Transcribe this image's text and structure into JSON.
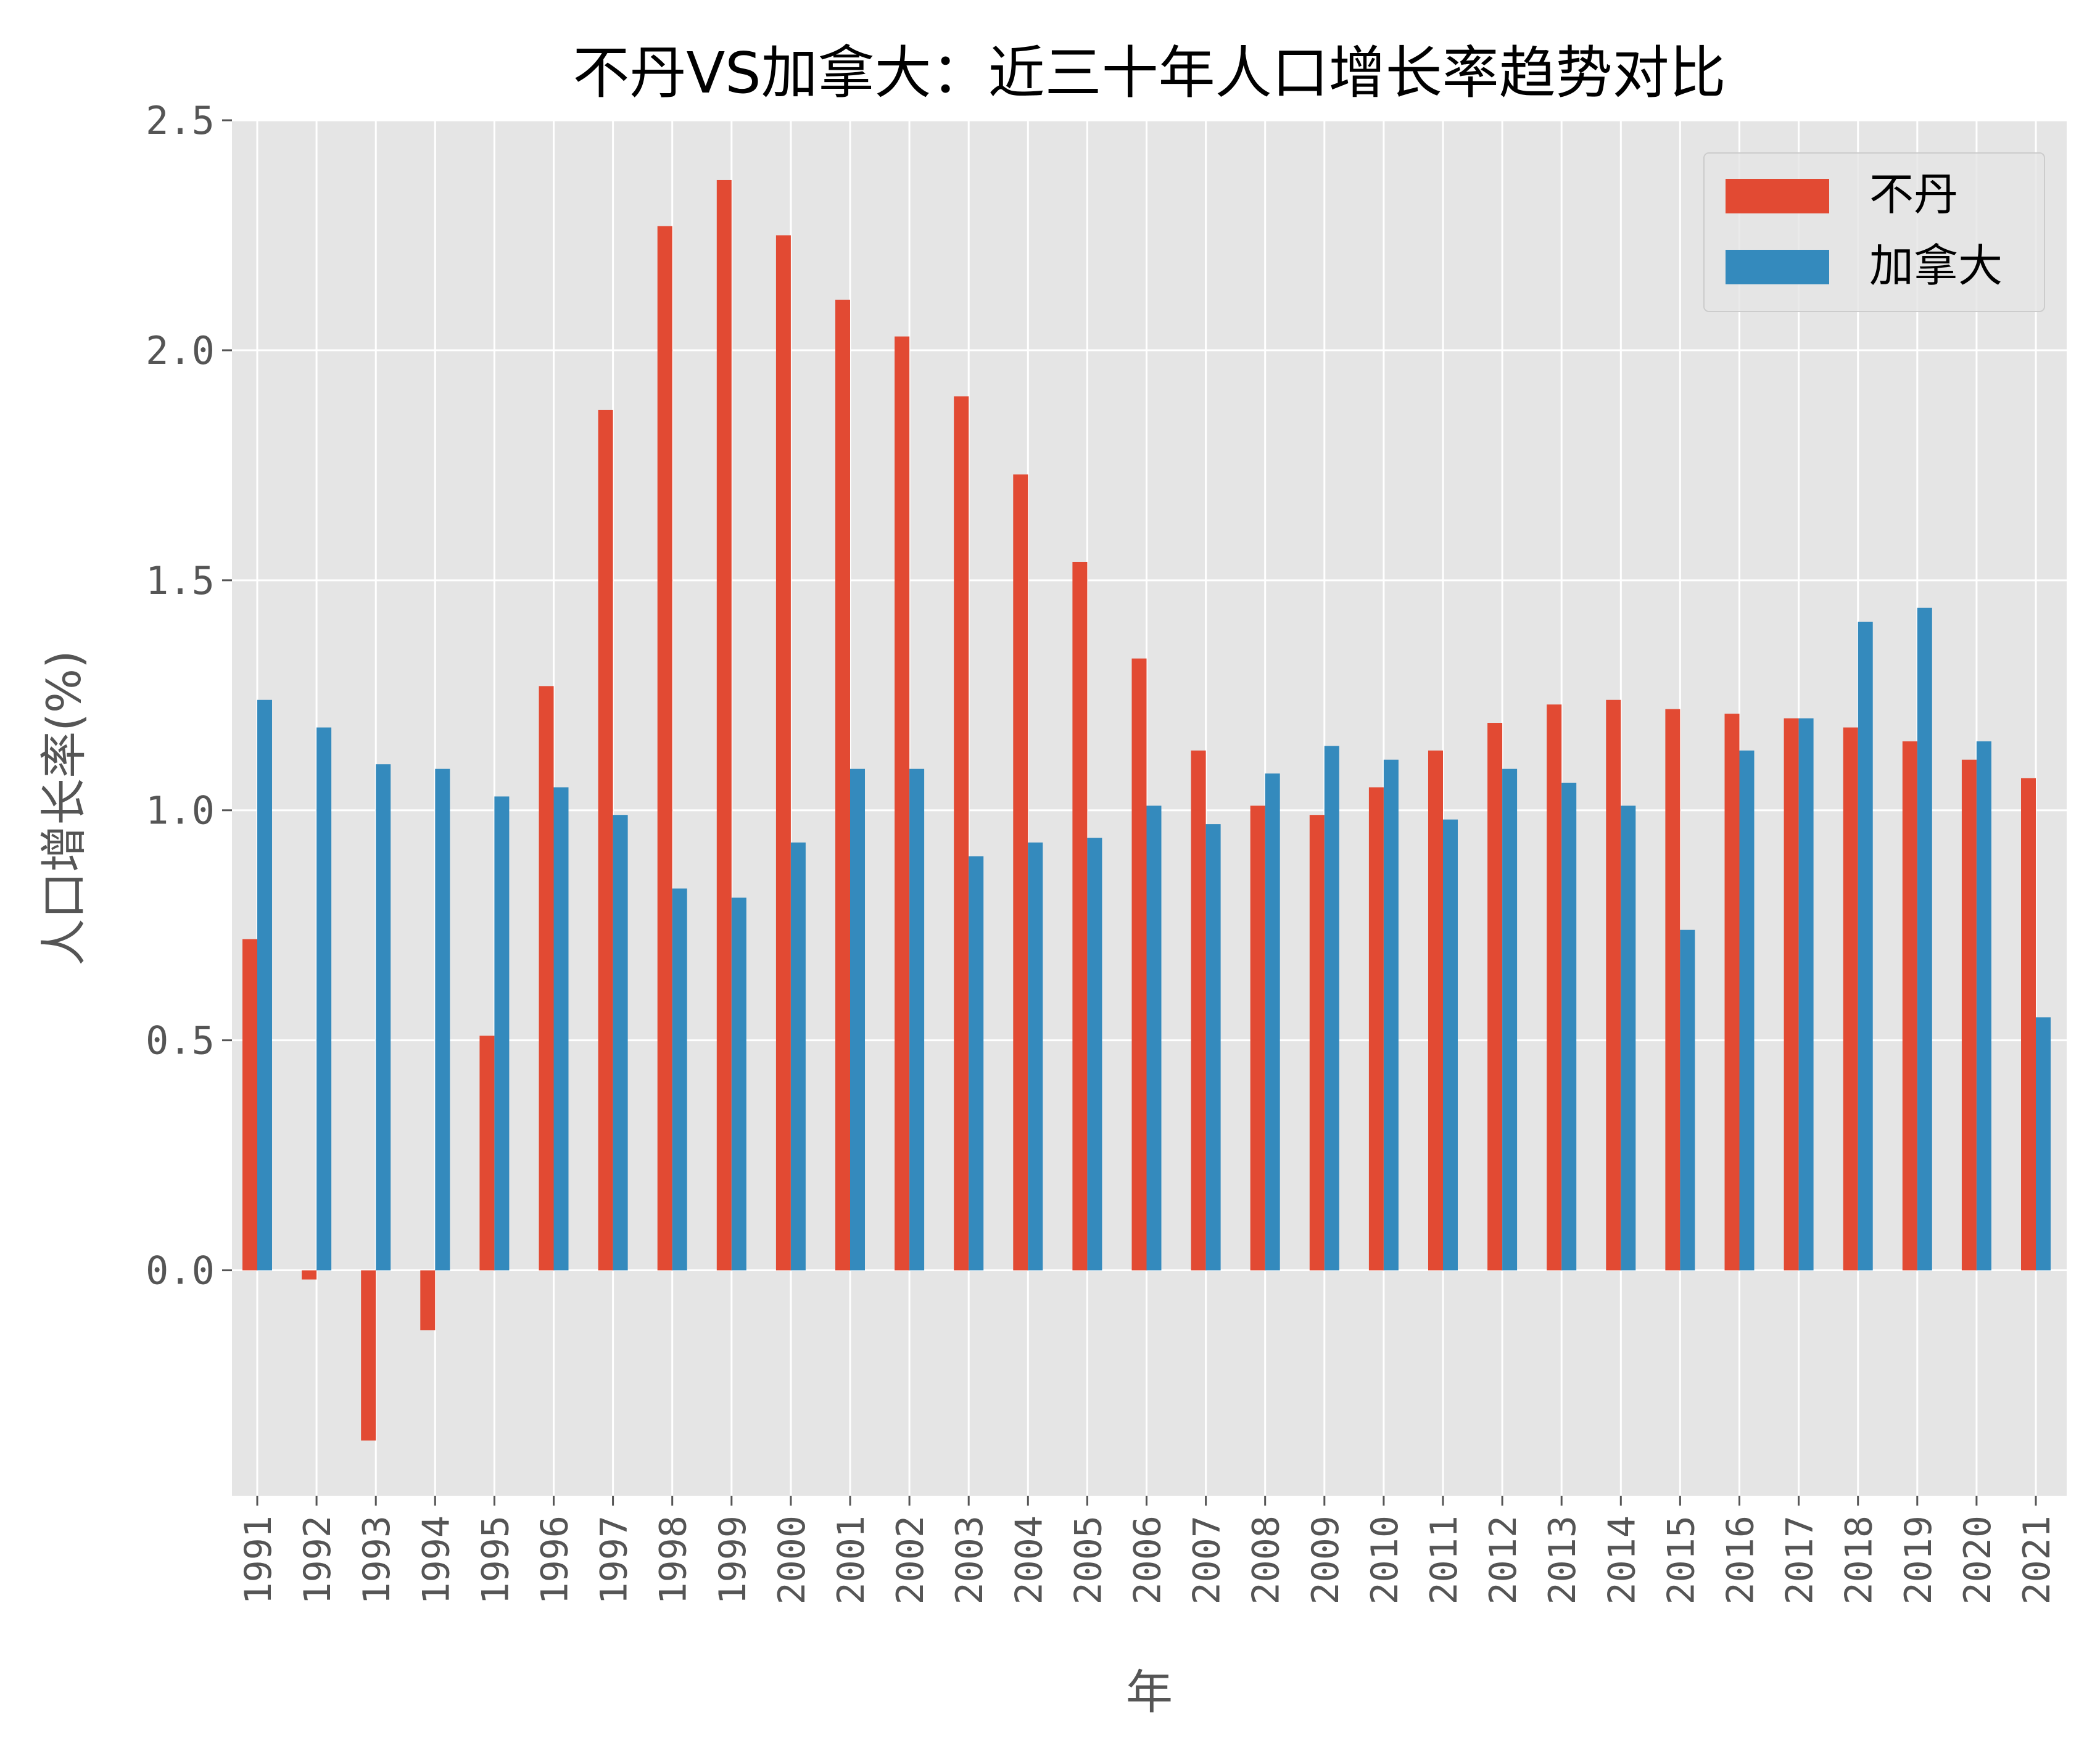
{
  "chart_data": {
    "type": "bar",
    "title": "不丹VS加拿大：近三十年人口增长率趋势对比",
    "xlabel": "年",
    "ylabel": "人口增长率(%)",
    "ylim": [
      -0.49,
      2.5
    ],
    "yticks": [
      "0.0",
      "0.5",
      "1.0",
      "1.5",
      "2.0",
      "2.5"
    ],
    "grid": true,
    "legend_position": "top-right",
    "categories": [
      "1991",
      "1992",
      "1993",
      "1994",
      "1995",
      "1996",
      "1997",
      "1998",
      "1999",
      "2000",
      "2001",
      "2002",
      "2003",
      "2004",
      "2005",
      "2006",
      "2007",
      "2008",
      "2009",
      "2010",
      "2011",
      "2012",
      "2013",
      "2014",
      "2015",
      "2016",
      "2017",
      "2018",
      "2019",
      "2020",
      "2021"
    ],
    "series": [
      {
        "name": "不丹",
        "color": "#E24A33",
        "values": [
          0.72,
          -0.02,
          -0.37,
          -0.13,
          0.51,
          1.27,
          1.87,
          2.27,
          2.37,
          2.25,
          2.11,
          2.03,
          1.9,
          1.73,
          1.54,
          1.33,
          1.13,
          1.01,
          0.99,
          1.05,
          1.13,
          1.19,
          1.23,
          1.24,
          1.22,
          1.21,
          1.2,
          1.18,
          1.15,
          1.11,
          1.07
        ]
      },
      {
        "name": "加拿大",
        "color": "#348ABD",
        "values": [
          1.24,
          1.18,
          1.1,
          1.09,
          1.03,
          1.05,
          0.99,
          0.83,
          0.81,
          0.93,
          1.09,
          1.09,
          0.9,
          0.93,
          0.94,
          1.01,
          0.97,
          1.08,
          1.14,
          1.11,
          0.98,
          1.09,
          1.06,
          1.01,
          0.74,
          1.13,
          1.2,
          1.41,
          1.44,
          1.15,
          0.55
        ]
      }
    ]
  }
}
